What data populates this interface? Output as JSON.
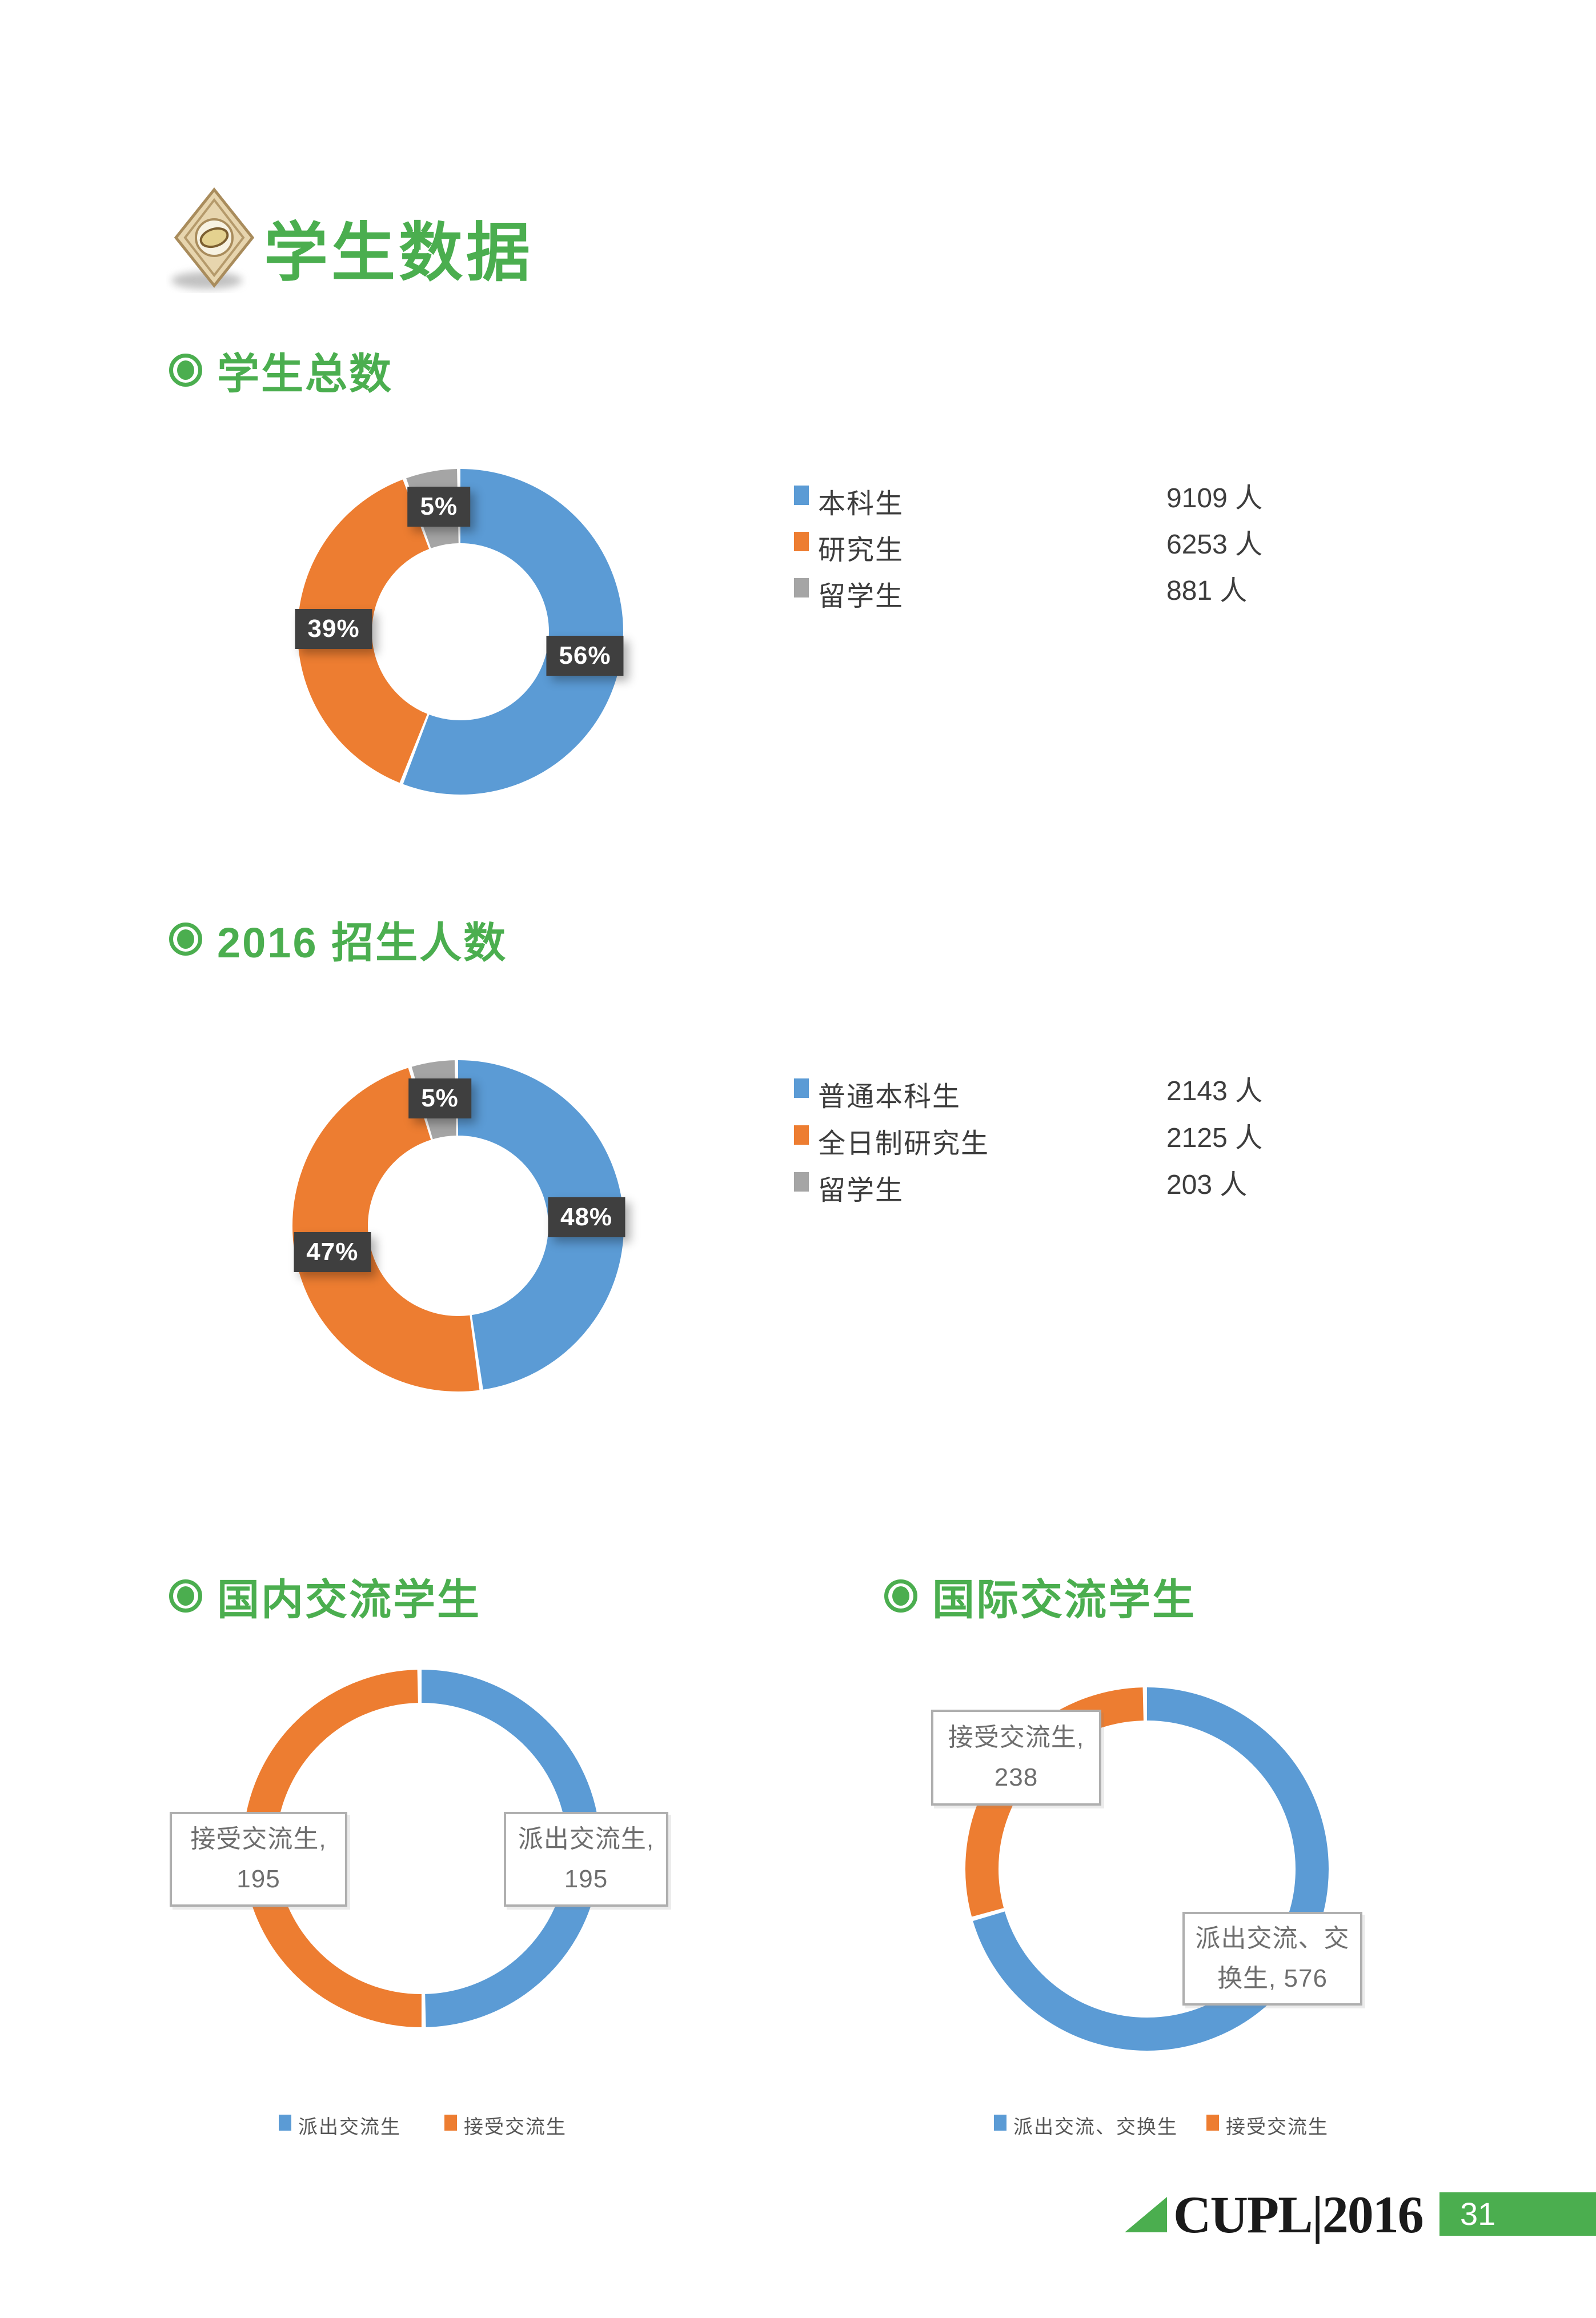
{
  "page": {
    "title": "学生数据"
  },
  "colors": {
    "accent_green": "#4BAE4F",
    "series_blue": "#5B9BD5",
    "series_orange": "#ED7D31",
    "series_gray": "#A5A5A5",
    "percent_label_bg": "#3F3F3F",
    "footer_band_green": "#4BAE4F"
  },
  "sections": {
    "total": {
      "heading": "学生总数"
    },
    "enroll": {
      "heading": "2016 招生人数"
    },
    "domestic": {
      "heading": "国内交流学生"
    },
    "intl": {
      "heading": "国际交流学生"
    }
  },
  "legends": {
    "total": [
      {
        "label": "本科生",
        "value": "9109 人"
      },
      {
        "label": "研究生",
        "value": "6253 人"
      },
      {
        "label": "留学生",
        "value": "881 人"
      }
    ],
    "enroll": [
      {
        "label": "普通本科生",
        "value": "2143 人"
      },
      {
        "label": "全日制研究生",
        "value": "2125 人"
      },
      {
        "label": "留学生",
        "value": "203 人"
      }
    ],
    "domestic": [
      {
        "label": "派出交流生"
      },
      {
        "label": "接受交流生"
      }
    ],
    "intl": [
      {
        "label": "派出交流、交换生"
      },
      {
        "label": "接受交流生"
      }
    ]
  },
  "callouts": {
    "domestic_receive": {
      "line1": "接受交流生,",
      "line2": "195"
    },
    "domestic_send": {
      "line1": "派出交流生,",
      "line2": "195"
    },
    "intl_receive": {
      "line1": "接受交流生,",
      "line2": "238"
    },
    "intl_send": {
      "line1": "派出交流、交",
      "line2": "换生, 576"
    }
  },
  "footer": {
    "brand": "CUPL|2016",
    "page_number": "31"
  },
  "chart_data": [
    {
      "type": "pie",
      "title": "学生总数",
      "categories": [
        "本科生",
        "研究生",
        "留学生"
      ],
      "values": [
        9109,
        6253,
        881
      ],
      "unit": "人",
      "percent_labels": [
        "56%",
        "39%",
        "5%"
      ],
      "colors": [
        "#5B9BD5",
        "#ED7D31",
        "#A5A5A5"
      ],
      "donut": true,
      "legend_position": "right"
    },
    {
      "type": "pie",
      "title": "2016 招生人数",
      "categories": [
        "普通本科生",
        "全日制研究生",
        "留学生"
      ],
      "values": [
        2143,
        2125,
        203
      ],
      "unit": "人",
      "percent_labels": [
        "48%",
        "47%",
        "5%"
      ],
      "colors": [
        "#5B9BD5",
        "#ED7D31",
        "#A5A5A5"
      ],
      "donut": true,
      "legend_position": "right"
    },
    {
      "type": "pie",
      "title": "国内交流学生",
      "categories": [
        "派出交流生",
        "接受交流生"
      ],
      "values": [
        195,
        195
      ],
      "colors": [
        "#5B9BD5",
        "#ED7D31"
      ],
      "donut": true,
      "legend_position": "bottom"
    },
    {
      "type": "pie",
      "title": "国际交流学生",
      "categories": [
        "派出交流、交换生",
        "接受交流生"
      ],
      "values": [
        576,
        238
      ],
      "colors": [
        "#5B9BD5",
        "#ED7D31"
      ],
      "donut": true,
      "legend_position": "bottom"
    }
  ]
}
